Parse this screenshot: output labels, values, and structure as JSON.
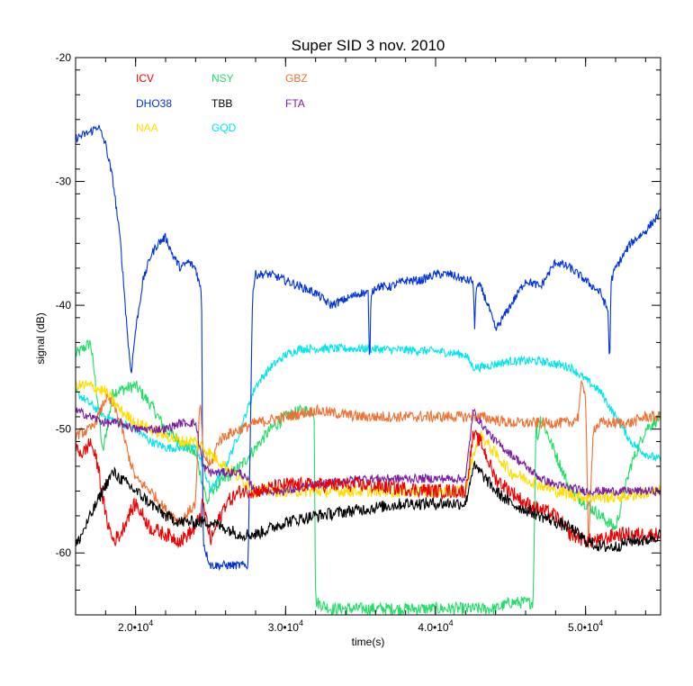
{
  "chart_data": {
    "type": "line",
    "title": "Super SID  3 nov. 2010",
    "xlabel": "time(s)",
    "ylabel": "signal (dB)",
    "xlim": [
      16000,
      55000
    ],
    "ylim": [
      -65,
      -20
    ],
    "x_ticks": [
      {
        "value": 20000,
        "mant": "2.0",
        "exp": "4"
      },
      {
        "value": 30000,
        "mant": "3.0",
        "exp": "4"
      },
      {
        "value": 40000,
        "mant": "4.0",
        "exp": "4"
      },
      {
        "value": 50000,
        "mant": "5.0",
        "exp": "4"
      }
    ],
    "y_ticks": [
      {
        "value": -20,
        "label": "-20"
      },
      {
        "value": -30,
        "label": "-30"
      },
      {
        "value": -40,
        "label": "-40"
      },
      {
        "value": -50,
        "label": "-50"
      },
      {
        "value": -60,
        "label": "-60"
      }
    ],
    "grid": false,
    "legend_placement": "top-left",
    "series": [
      {
        "name": "NSY",
        "color": "#22dd66",
        "noise": 0.5,
        "x": [
          16000,
          17000,
          17500,
          17800,
          18500,
          20000,
          21000,
          22000,
          23000,
          24000,
          24800,
          25000,
          26000,
          27000,
          28000,
          29000,
          30000,
          31000,
          31900,
          32000,
          32100,
          33000,
          35000,
          37000,
          40000,
          42000,
          44000,
          45000,
          46000,
          46500,
          46700,
          46800,
          47000,
          48000,
          49000,
          50000,
          51000,
          52000,
          53000,
          54000,
          55000
        ],
        "y": [
          -44,
          -43,
          -48,
          -52,
          -47,
          -46.5,
          -48,
          -50,
          -51,
          -52,
          -56,
          -55,
          -54,
          -53,
          -51.5,
          -50,
          -49,
          -48.5,
          -48.5,
          -64,
          -64,
          -64.5,
          -64.5,
          -64.5,
          -64.5,
          -64.5,
          -64.5,
          -64,
          -64,
          -64,
          -49,
          -51,
          -49,
          -52,
          -55,
          -56,
          -57,
          -58,
          -53,
          -50,
          -49
        ]
      },
      {
        "name": "GQD",
        "color": "#00e5ee",
        "noise": 0.35,
        "x": [
          16000,
          17000,
          18000,
          19000,
          20000,
          21000,
          22000,
          23000,
          24000,
          24500,
          25000,
          26000,
          27000,
          28000,
          29000,
          30000,
          31000,
          32000,
          35000,
          40000,
          42000,
          42500,
          43000,
          45000,
          47000,
          49000,
          50000,
          51000,
          52000,
          53000,
          54000,
          55000
        ],
        "y": [
          -47,
          -48,
          -49,
          -49.5,
          -50,
          -51,
          -51.5,
          -51.5,
          -51.5,
          -53,
          -55,
          -53,
          -50,
          -46.5,
          -45,
          -44,
          -43.5,
          -43.5,
          -43.5,
          -43.7,
          -44,
          -45,
          -45,
          -44.5,
          -44.5,
          -45,
          -46,
          -47,
          -49,
          -51,
          -52,
          -52.5
        ]
      },
      {
        "name": "DHO38",
        "color": "#0033dd",
        "noise": 0.35,
        "x": [
          16000,
          17000,
          17500,
          18000,
          18500,
          19000,
          19500,
          19700,
          20000,
          20500,
          21000,
          21500,
          22000,
          22500,
          23000,
          23500,
          24000,
          24400,
          24500,
          24700,
          25000,
          26000,
          27000,
          27500,
          27800,
          28000,
          29000,
          30000,
          31000,
          32000,
          33000,
          34000,
          35000,
          35500,
          35600,
          35700,
          36000,
          37000,
          38000,
          39000,
          40000,
          41000,
          42000,
          42500,
          42600,
          42700,
          43000,
          43500,
          44000,
          45000,
          46000,
          47000,
          48000,
          49000,
          50000,
          51000,
          51500,
          51600,
          51700,
          52000,
          53000,
          54000,
          55000
        ],
        "y": [
          -26.5,
          -26,
          -25.5,
          -27,
          -30,
          -35,
          -43,
          -45.5,
          -42,
          -38,
          -36,
          -35,
          -34.5,
          -36,
          -37,
          -36.5,
          -37,
          -39,
          -59,
          -60,
          -61,
          -61,
          -61,
          -61,
          -39,
          -37.5,
          -37.5,
          -38,
          -38.5,
          -39,
          -40,
          -39.5,
          -39,
          -39,
          -45,
          -39,
          -38.5,
          -38.5,
          -38,
          -38,
          -37.5,
          -37.5,
          -38,
          -38,
          -42,
          -38.5,
          -38.5,
          -40,
          -42,
          -40,
          -38,
          -38.5,
          -36.5,
          -37,
          -38,
          -39,
          -40.5,
          -45,
          -38,
          -37,
          -35,
          -34,
          -32.5
        ]
      },
      {
        "name": "GBZ",
        "color": "#f07030",
        "noise": 0.45,
        "x": [
          16000,
          17000,
          17500,
          18000,
          18500,
          19000,
          19500,
          20000,
          21000,
          22000,
          23000,
          24000,
          24300,
          24500,
          25000,
          25500,
          26000,
          27000,
          28000,
          30000,
          32000,
          35000,
          40000,
          42000,
          43000,
          45000,
          47000,
          48000,
          49000,
          49500,
          49700,
          50000,
          50200,
          50500,
          51000,
          52000,
          53000,
          54000,
          55000
        ],
        "y": [
          -50.5,
          -50,
          -49,
          -47.5,
          -48,
          -49.5,
          -52,
          -54,
          -55,
          -56.5,
          -57.5,
          -56,
          -47.5,
          -52,
          -53,
          -51,
          -50.5,
          -50,
          -49.5,
          -49,
          -48.5,
          -49,
          -49,
          -49,
          -49,
          -49.5,
          -49.5,
          -49.5,
          -49.5,
          -49,
          -46.5,
          -47,
          -60,
          -50,
          -49.5,
          -49.5,
          -49.5,
          -49,
          -49
        ]
      },
      {
        "name": "NAA",
        "color": "#ffdd00",
        "noise": 0.5,
        "x": [
          16000,
          17000,
          18000,
          19000,
          20000,
          21000,
          22000,
          23000,
          24000,
          25000,
          26000,
          27000,
          28000,
          30000,
          32000,
          35000,
          40000,
          42000,
          42500,
          43000,
          44000,
          45000,
          46000,
          47000,
          48000,
          50000,
          52000,
          55000
        ],
        "y": [
          -46.5,
          -46.5,
          -47,
          -48.5,
          -49.5,
          -50,
          -50.5,
          -51,
          -51,
          -52,
          -53,
          -54,
          -55,
          -55,
          -55,
          -55,
          -55,
          -55,
          -52,
          -50.5,
          -52,
          -53.5,
          -54,
          -54.5,
          -55,
          -55.5,
          -55.5,
          -55
        ]
      },
      {
        "name": "FTA",
        "color": "#7a1fa0",
        "noise": 0.35,
        "x": [
          16000,
          17000,
          18000,
          19000,
          20000,
          21000,
          22000,
          23000,
          24000,
          24500,
          25000,
          26000,
          27000,
          28000,
          30000,
          32000,
          35000,
          40000,
          42000,
          42500,
          43000,
          44000,
          45000,
          46000,
          47000,
          48000,
          50000,
          52000,
          55000
        ],
        "y": [
          -48.5,
          -49,
          -49.5,
          -49.5,
          -50,
          -50,
          -50,
          -49.5,
          -49.5,
          -53,
          -53.5,
          -53.5,
          -53.5,
          -55,
          -55,
          -54.5,
          -54,
          -54,
          -54,
          -48.5,
          -49.5,
          -51,
          -52,
          -53,
          -54,
          -54.5,
          -55,
          -55,
          -55
        ]
      },
      {
        "name": "ICV",
        "color": "#ee0000",
        "noise": 0.6,
        "x": [
          16000,
          16500,
          17000,
          17500,
          18000,
          18500,
          19000,
          19500,
          20000,
          21000,
          22000,
          23000,
          24000,
          24500,
          25000,
          26000,
          27000,
          28000,
          30000,
          32000,
          35000,
          40000,
          42000,
          42500,
          43000,
          44000,
          45000,
          46000,
          47000,
          48000,
          49000,
          50000,
          51000,
          52000,
          53000,
          54000,
          55000
        ],
        "y": [
          -51.5,
          -52,
          -51,
          -53,
          -57,
          -59,
          -58.5,
          -57,
          -56,
          -58,
          -58.5,
          -59,
          -58,
          -56,
          -59,
          -56,
          -55,
          -55,
          -54.5,
          -54.5,
          -54.5,
          -55,
          -55,
          -50.5,
          -51,
          -54,
          -55,
          -56,
          -56.5,
          -57,
          -58.5,
          -59,
          -59,
          -58.5,
          -58.5,
          -58.5,
          -58.5
        ]
      },
      {
        "name": "TBB",
        "color": "#000000",
        "noise": 0.5,
        "x": [
          16000,
          17000,
          18000,
          18500,
          19000,
          20000,
          21000,
          22000,
          23000,
          24000,
          25000,
          26000,
          27000,
          28000,
          29000,
          30000,
          32000,
          35000,
          38000,
          40000,
          42000,
          42500,
          43000,
          44000,
          45000,
          46000,
          47000,
          48000,
          49000,
          50000,
          51000,
          52000,
          53000,
          54000,
          55000
        ],
        "y": [
          -59.5,
          -57,
          -54.5,
          -53.5,
          -54,
          -55,
          -56,
          -57,
          -57.5,
          -57.5,
          -57.5,
          -58,
          -58.5,
          -58.5,
          -58,
          -57.5,
          -57,
          -56.5,
          -56,
          -56,
          -56,
          -53,
          -53.5,
          -55,
          -56,
          -56.5,
          -57,
          -57.5,
          -58,
          -59,
          -59.5,
          -59.5,
          -59,
          -59,
          -58.5
        ]
      }
    ],
    "legend": [
      {
        "name": "ICV",
        "color": "#ee0000",
        "row": 0,
        "col": 0
      },
      {
        "name": "NSY",
        "color": "#22dd66",
        "row": 0,
        "col": 1
      },
      {
        "name": "GBZ",
        "color": "#f07030",
        "row": 0,
        "col": 2
      },
      {
        "name": "DHO38",
        "color": "#0033dd",
        "row": 1,
        "col": 0
      },
      {
        "name": "TBB",
        "color": "#000000",
        "row": 1,
        "col": 1
      },
      {
        "name": "FTA",
        "color": "#7a1fa0",
        "row": 1,
        "col": 2
      },
      {
        "name": "NAA",
        "color": "#ffdd00",
        "row": 2,
        "col": 0
      },
      {
        "name": "GQD",
        "color": "#00e5ee",
        "row": 2,
        "col": 1
      }
    ]
  }
}
